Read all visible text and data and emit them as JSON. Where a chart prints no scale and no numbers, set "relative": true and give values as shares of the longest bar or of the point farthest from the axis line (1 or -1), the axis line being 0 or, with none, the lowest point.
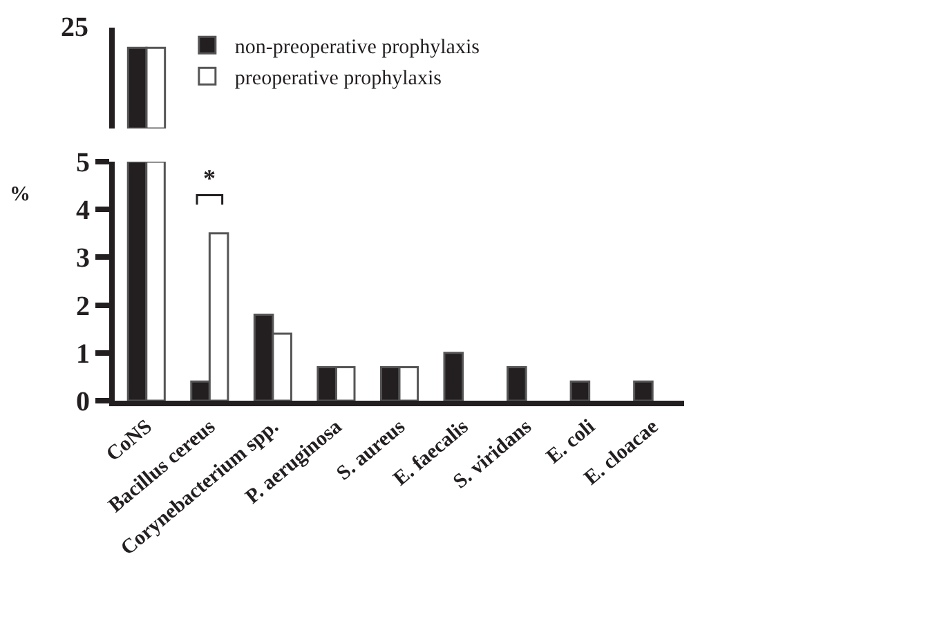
{
  "chart_data": [
    {
      "type": "bar",
      "categories": [
        null
      ],
      "series": [
        {
          "name": "non-preoperative prophylaxis",
          "color": "#231f20",
          "values": [
            1
          ]
        },
        {
          "name": "preoperative prophylaxis",
          "color": "#ffffff",
          "values": [
            1
          ]
        }
      ],
      "relative": true,
      "annotations": [
        "25"
      ],
      "legend": "top right",
      "grid": false
    },
    {
      "type": "bar",
      "categories": [
        "CoNS",
        "Bacillus cereus",
        "Corynebacterium spp.",
        "P. aeruginosa",
        "S. aureus",
        "E. faecalis",
        "S. viridans",
        "E. coli",
        "E. cloacae"
      ],
      "series": [
        {
          "color": "#231f20",
          "values": [
            5,
            0.4,
            1.8,
            0.7,
            0.7,
            1,
            0.7,
            0.4,
            0.4
          ]
        },
        {
          "color": "#ffffff",
          "values": [
            5,
            3.5,
            1.4,
            0.7,
            0.7,
            0,
            0,
            0,
            0
          ]
        }
      ],
      "ylabel": "%",
      "ylim": [
        0,
        5
      ],
      "yticks": [
        0,
        1,
        2,
        3,
        4,
        5
      ],
      "grid": false,
      "legend": false,
      "annotations": [
        "*"
      ]
    }
  ]
}
